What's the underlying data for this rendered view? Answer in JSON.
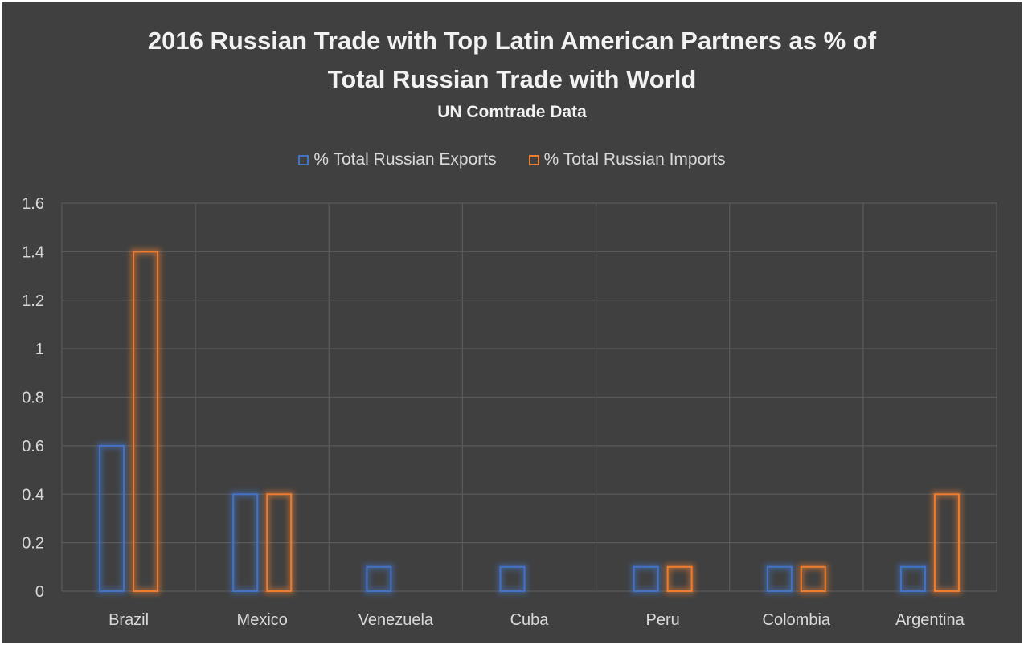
{
  "chart_data": {
    "type": "bar",
    "title_line1": "2016 Russian Trade with Top Latin American Partners as % of",
    "title_line2": "Total Russian Trade with World",
    "subtitle": "UN Comtrade Data",
    "categories": [
      "Brazil",
      "Mexico",
      "Venezuela",
      "Cuba",
      "Peru",
      "Colombia",
      "Argentina"
    ],
    "series": [
      {
        "name": "% Total Russian Exports",
        "color": "#4472c4",
        "values": [
          0.6,
          0.4,
          0.1,
          0.1,
          0.1,
          0.1,
          0.1
        ]
      },
      {
        "name": "% Total Russian Imports",
        "color": "#ed7d31",
        "values": [
          1.4,
          0.4,
          0,
          0,
          0.1,
          0.1,
          0.4
        ]
      }
    ],
    "y_ticks": [
      "0",
      "0.2",
      "0.4",
      "0.6",
      "0.8",
      "1",
      "1.2",
      "1.4",
      "1.6"
    ],
    "ylim": [
      0,
      1.6
    ],
    "grid": true,
    "legend_position": "top-center",
    "xlabel": "",
    "ylabel": ""
  }
}
